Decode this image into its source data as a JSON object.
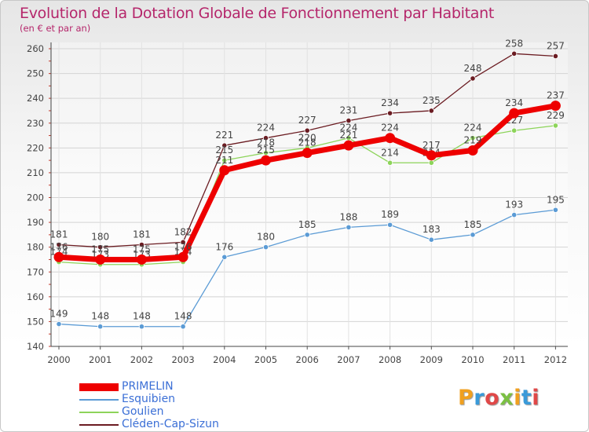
{
  "title": "Evolution de la Dotation Globale de Fonctionnement par Habitant",
  "subtitle": "(en € et par an)",
  "brand": "Proxiti",
  "chart_data": {
    "type": "line",
    "x": [
      "2000",
      "2001",
      "2002",
      "2003",
      "2004",
      "2005",
      "2006",
      "2007",
      "2008",
      "2009",
      "2010",
      "2011",
      "2012"
    ],
    "ylim": [
      140,
      260
    ],
    "yticks": [
      140,
      150,
      160,
      170,
      180,
      190,
      200,
      210,
      220,
      230,
      240,
      250,
      260
    ],
    "grid": true,
    "legend_position": "bottom-left",
    "series": [
      {
        "name": "Cléden-Cap-Sizun",
        "color": "#6b1c22",
        "values": [
          181,
          180,
          181,
          182,
          221,
          224,
          227,
          231,
          234,
          235,
          248,
          258,
          257
        ]
      },
      {
        "name": "Esquibien",
        "color": "#5b9bd5",
        "values": [
          149,
          148,
          148,
          148,
          176,
          180,
          185,
          188,
          189,
          183,
          185,
          193,
          195
        ]
      },
      {
        "name": "Goulien",
        "color": "#8dd45a",
        "values": [
          174,
          173,
          173,
          174,
          215,
          218,
          220,
          224,
          214,
          214,
          224,
          227,
          229
        ]
      },
      {
        "name": "PRIMELIN",
        "color": "#ee0000",
        "values": [
          176,
          175,
          175,
          176,
          211,
          215,
          218,
          221,
          224,
          217,
          219,
          234,
          237
        ]
      }
    ],
    "legend": [
      {
        "name": "PRIMELIN",
        "color": "#ee0000"
      },
      {
        "name": "Esquibien",
        "color": "#5b9bd5"
      },
      {
        "name": "Goulien",
        "color": "#8dd45a"
      },
      {
        "name": "Cléden-Cap-Sizun",
        "color": "#6b1c22"
      }
    ]
  }
}
